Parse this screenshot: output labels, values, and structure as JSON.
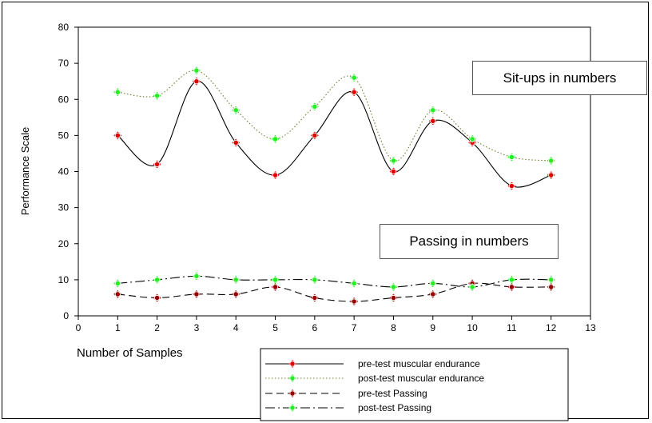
{
  "chart_data": {
    "type": "line",
    "x": [
      1,
      2,
      3,
      4,
      5,
      6,
      7,
      8,
      9,
      10,
      11,
      12
    ],
    "xlabel": "Number of Samples",
    "ylabel": "Performance Scale",
    "xlim": [
      0,
      13
    ],
    "ylim": [
      0,
      80
    ],
    "xticks": [
      0,
      1,
      2,
      3,
      4,
      5,
      6,
      7,
      8,
      9,
      10,
      11,
      12,
      13
    ],
    "yticks": [
      0,
      10,
      20,
      30,
      40,
      50,
      60,
      70,
      80
    ],
    "grid": false,
    "legend_position": "bottom-center",
    "series": [
      {
        "name": "pre-test muscular endurance",
        "values": [
          50,
          42,
          65,
          48,
          39,
          50,
          62,
          40,
          54,
          48,
          36,
          39
        ],
        "line_style": "solid",
        "marker_color": "#e00000",
        "line_color": "#000000"
      },
      {
        "name": "post-test muscular endurance",
        "values": [
          62,
          61,
          68,
          57,
          49,
          58,
          66,
          43,
          57,
          49,
          44,
          43
        ],
        "line_style": "dotted",
        "marker_color": "#22ee22",
        "line_color": "#777733"
      },
      {
        "name": "pre-test Passing",
        "values": [
          6,
          5,
          6,
          6,
          8,
          5,
          4,
          5,
          6,
          9,
          8,
          8
        ],
        "line_style": "dashed",
        "marker_color": "#990000",
        "line_color": "#000000"
      },
      {
        "name": "post-test Passing",
        "values": [
          9,
          10,
          11,
          10,
          10,
          10,
          9,
          8,
          9,
          8,
          10,
          10
        ],
        "line_style": "dashdot",
        "marker_color": "#22ee22",
        "line_color": "#000000"
      }
    ],
    "annotations": [
      "Sit-ups in numbers",
      "Passing in numbers"
    ]
  }
}
